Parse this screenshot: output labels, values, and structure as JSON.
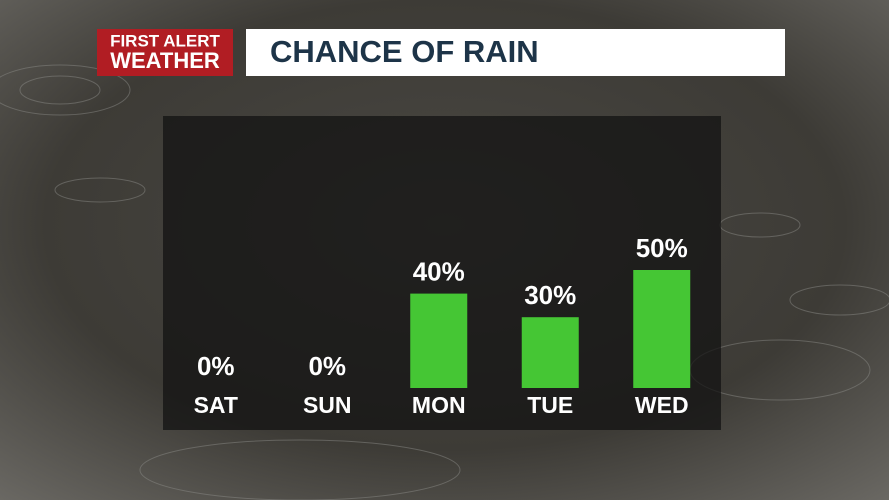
{
  "chart_data": {
    "type": "bar",
    "brand": [
      "FIRST ALERT",
      "WEATHER"
    ],
    "title": "CHANCE OF RAIN",
    "categories": [
      "SAT",
      "SUN",
      "MON",
      "TUE",
      "WED"
    ],
    "values": [
      0,
      0,
      40,
      30,
      50
    ],
    "value_labels": [
      "0%",
      "0%",
      "40%",
      "30%",
      "50%"
    ],
    "color": "#45c634"
  }
}
